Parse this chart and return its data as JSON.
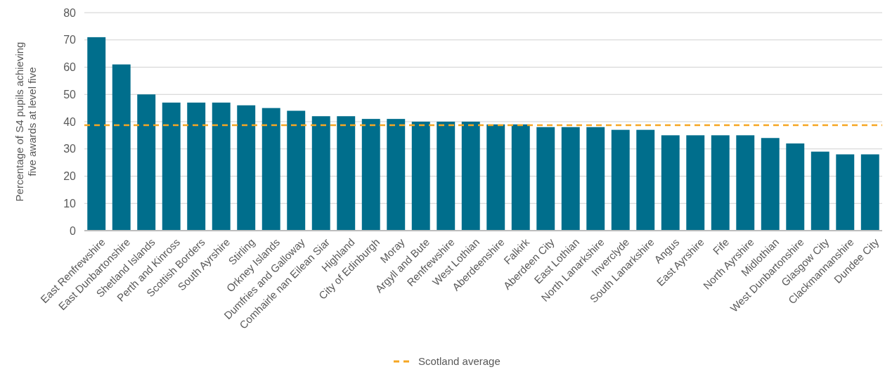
{
  "chart_data": {
    "type": "bar",
    "ylabel": "Percentage of S4 pupils achieving\nfive awards at level five",
    "categories": [
      "East Renfrewshire",
      "East Dunbartonshire",
      "Shetland Islands",
      "Perth and Kinross",
      "Scottish Borders",
      "South Ayrshire",
      "Stirling",
      "Orkney Islands",
      "Dumfries and Galloway",
      "Comhairle nan Eilean Siar",
      "Highland",
      "City of Edinburgh",
      "Moray",
      "Argyll and Bute",
      "Renfrewshire",
      "West Lothian",
      "Aberdeenshire",
      "Falkirk",
      "Aberdeen City",
      "East Lothian",
      "North Lanarkshire",
      "Inverclyde",
      "South Lanarkshire",
      "Angus",
      "East Ayrshire",
      "Fife",
      "North Ayrshire",
      "Midlothian",
      "West Dunbartonshire",
      "Glasgow City",
      "Clackmannanshire",
      "Dundee City"
    ],
    "values": [
      71,
      61,
      50,
      47,
      47,
      47,
      46,
      45,
      44,
      42,
      42,
      41,
      41,
      40,
      40,
      40,
      39,
      39,
      38,
      38,
      38,
      37,
      37,
      35,
      35,
      35,
      35,
      34,
      32,
      29,
      28,
      28
    ],
    "color": "#006e8c",
    "ylim": [
      0,
      80
    ],
    "yticks": [
      0,
      10,
      20,
      30,
      40,
      50,
      60,
      70,
      80
    ],
    "grid": "y",
    "legend": "bottom",
    "ref_lines": [
      {
        "axis": "y",
        "value": 38.7,
        "label": "Scotland average",
        "color": "#f5a623",
        "line_style": "dashed"
      }
    ]
  }
}
